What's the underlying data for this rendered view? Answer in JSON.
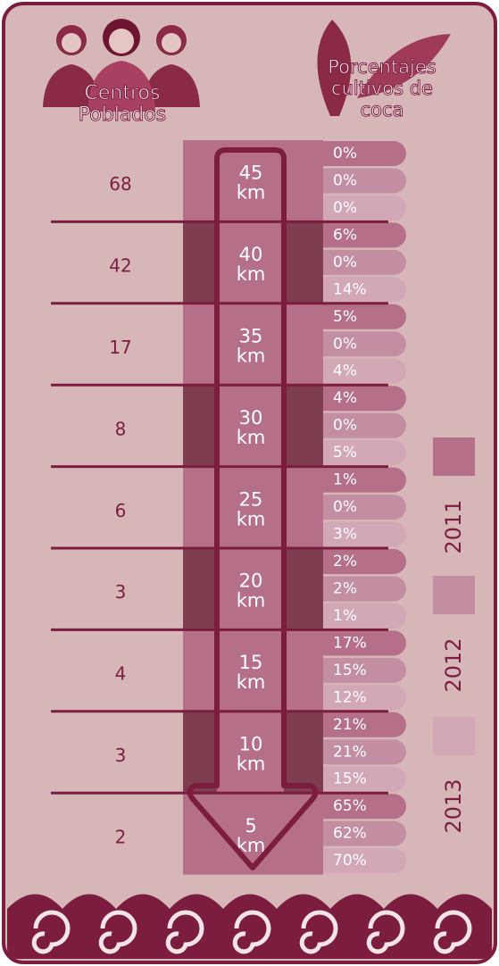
{
  "header": {
    "left": [
      "Centros",
      "Poblados"
    ],
    "right": [
      "Porcentajes",
      "cultivos de",
      "coca"
    ]
  },
  "rows": [
    {
      "centros": "68",
      "km_value": "45",
      "km_unit": "km",
      "coca": [
        "0%",
        "0%",
        "0%"
      ]
    },
    {
      "centros": "42",
      "km_value": "40",
      "km_unit": "km",
      "coca": [
        "6%",
        "0%",
        "14%"
      ]
    },
    {
      "centros": "17",
      "km_value": "35",
      "km_unit": "km",
      "coca": [
        "5%",
        "0%",
        "4%"
      ]
    },
    {
      "centros": "8",
      "km_value": "30",
      "km_unit": "km",
      "coca": [
        "4%",
        "0%",
        "5%"
      ]
    },
    {
      "centros": "6",
      "km_value": "25",
      "km_unit": "km",
      "coca": [
        "1%",
        "0%",
        "3%"
      ]
    },
    {
      "centros": "3",
      "km_value": "20",
      "km_unit": "km",
      "coca": [
        "2%",
        "2%",
        "1%"
      ]
    },
    {
      "centros": "4",
      "km_value": "15",
      "km_unit": "km",
      "coca": [
        "17%",
        "15%",
        "12%"
      ]
    },
    {
      "centros": "3",
      "km_value": "10",
      "km_unit": "km",
      "coca": [
        "21%",
        "21%",
        "15%"
      ]
    },
    {
      "centros": "2",
      "km_value": "5",
      "km_unit": "km",
      "coca": [
        "65%",
        "62%",
        "70%"
      ]
    }
  ],
  "legend": [
    {
      "label": "2011",
      "color": "#b56f88"
    },
    {
      "label": "2012",
      "color": "#c38ea1"
    },
    {
      "label": "2013",
      "color": "#d2a7b6"
    }
  ]
}
